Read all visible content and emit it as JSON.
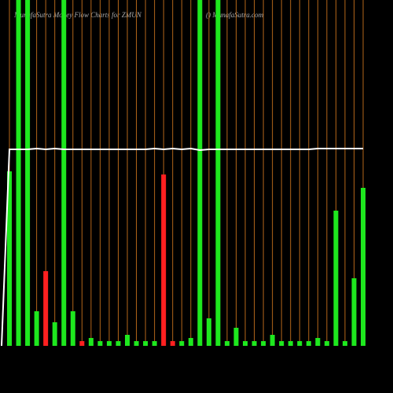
{
  "chart_data": {
    "type": "bar",
    "title": "MunafaSutra  Money Flow  Charts for ZMUN",
    "site": "() MunafaSutra.com",
    "ylim": [
      0,
      440
    ],
    "values": [
      222,
      460,
      460,
      44,
      95,
      30,
      460,
      44,
      6,
      10,
      6,
      6,
      6,
      14,
      6,
      6,
      6,
      218,
      6,
      6,
      10,
      460,
      35,
      460,
      6,
      23,
      6,
      6,
      6,
      14,
      6,
      6,
      6,
      6,
      10,
      6,
      172,
      6,
      86,
      201
    ],
    "colors": [
      "#1ee81e",
      "#1ee81e",
      "#1ee81e",
      "#1ee81e",
      "#ff2020",
      "#1ee81e",
      "#1ee81e",
      "#1ee81e",
      "#ff2020",
      "#1ee81e",
      "#1ee81e",
      "#1ee81e",
      "#1ee81e",
      "#1ee81e",
      "#1ee81e",
      "#1ee81e",
      "#1ee81e",
      "#ff2020",
      "#ff2020",
      "#1ee81e",
      "#1ee81e",
      "#1ee81e",
      "#1ee81e",
      "#1ee81e",
      "#1ee81e",
      "#1ee81e",
      "#1ee81e",
      "#1ee81e",
      "#1ee81e",
      "#1ee81e",
      "#1ee81e",
      "#1ee81e",
      "#1ee81e",
      "#1ee81e",
      "#1ee81e",
      "#1ee81e",
      "#1ee81e",
      "#1ee81e",
      "#1ee81e",
      "#1ee81e"
    ],
    "line_values": [
      250,
      250,
      250,
      251,
      250,
      251,
      250,
      250,
      250,
      250,
      250,
      250,
      250,
      250,
      250,
      250,
      251,
      250,
      251,
      250,
      251,
      249,
      250,
      250,
      250,
      250,
      250,
      250,
      250,
      250,
      250,
      250,
      250,
      250,
      251,
      251,
      251,
      251,
      251,
      251
    ],
    "line_color": "#ffffff",
    "grid_color": "#b3661a"
  }
}
